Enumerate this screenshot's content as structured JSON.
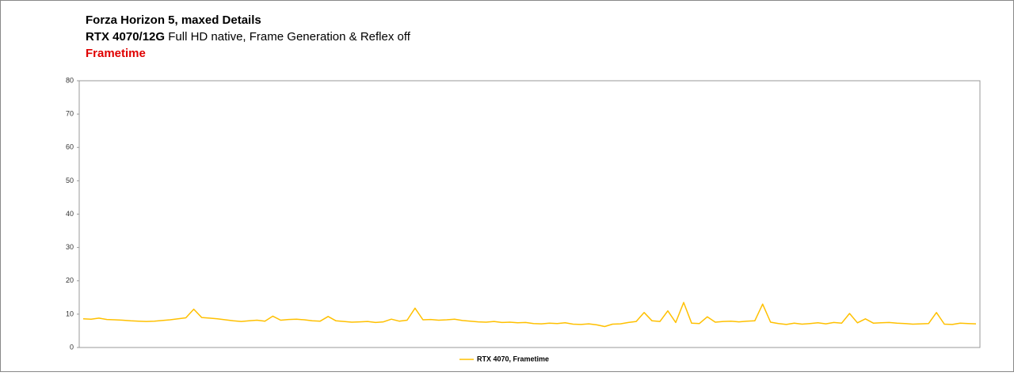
{
  "chart_data": {
    "type": "line",
    "title": "Forza Horizon 5, maxed Details",
    "subtitle_bold": "RTX 4070/12G",
    "subtitle": "Full HD native, Frame Generation & Reflex off",
    "metric": "Frametime",
    "ylim": [
      0,
      80
    ],
    "yticks": [
      0,
      10,
      20,
      30,
      40,
      50,
      60,
      70,
      80
    ],
    "grid": false,
    "legend": "bottom",
    "series": [
      {
        "name": "RTX 4070, Frametime",
        "color": "#ffc000",
        "values": [
          8.6,
          8.5,
          8.8,
          8.4,
          8.3,
          8.2,
          8.0,
          7.9,
          7.8,
          7.9,
          8.1,
          8.3,
          8.6,
          8.9,
          11.5,
          9.0,
          8.8,
          8.6,
          8.3,
          8.0,
          7.8,
          8.0,
          8.2,
          7.9,
          9.4,
          8.2,
          8.4,
          8.5,
          8.3,
          8.0,
          7.9,
          9.3,
          8.0,
          7.8,
          7.6,
          7.7,
          7.8,
          7.5,
          7.7,
          8.5,
          7.9,
          8.2,
          11.8,
          8.3,
          8.4,
          8.2,
          8.3,
          8.5,
          8.1,
          7.9,
          7.7,
          7.6,
          7.8,
          7.5,
          7.6,
          7.4,
          7.5,
          7.2,
          7.1,
          7.3,
          7.2,
          7.4,
          7.0,
          6.9,
          7.1,
          6.8,
          6.3,
          7.0,
          7.1,
          7.5,
          7.8,
          10.5,
          8.0,
          7.8,
          11.0,
          7.5,
          13.5,
          7.3,
          7.2,
          9.2,
          7.6,
          7.8,
          7.9,
          7.7,
          7.9,
          8.0,
          13.0,
          7.6,
          7.2,
          6.9,
          7.3,
          7.0,
          7.2,
          7.4,
          7.1,
          7.5,
          7.3,
          10.2,
          7.4,
          8.6,
          7.3,
          7.4,
          7.5,
          7.3,
          7.2,
          7.0,
          7.1,
          7.2,
          10.5,
          7.0,
          6.9,
          7.3,
          7.2,
          7.1
        ]
      }
    ]
  }
}
